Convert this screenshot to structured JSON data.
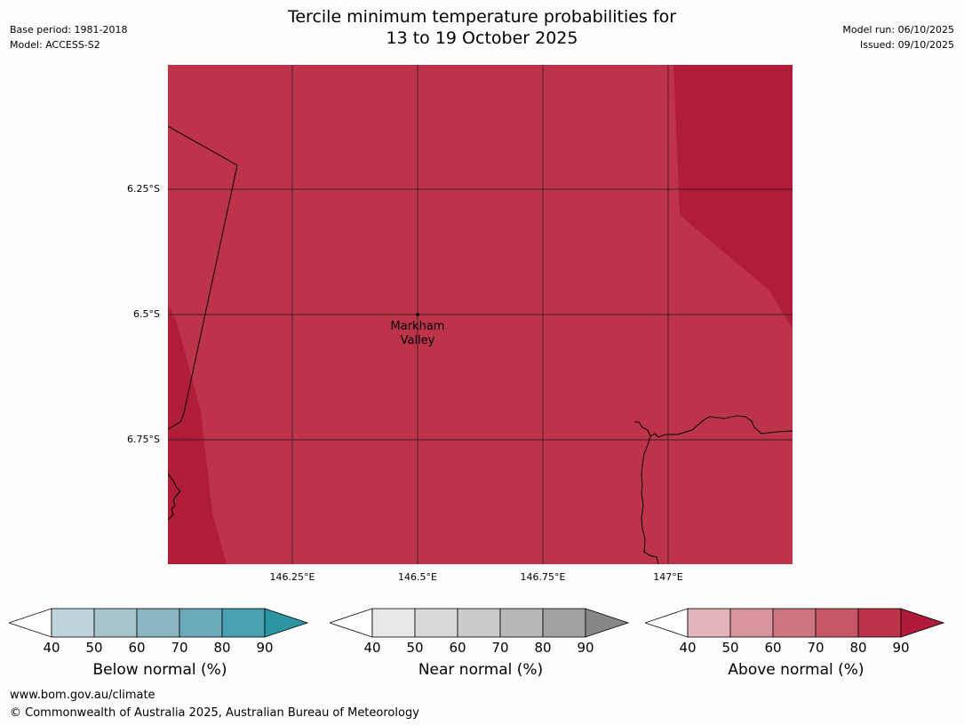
{
  "meta": {
    "base_period": "Base period: 1981-2018",
    "model": "Model: ACCESS-S2",
    "model_run": "Model run: 06/10/2025",
    "issued": "Issued: 09/10/2025"
  },
  "title": {
    "line1": "Tercile minimum temperature probabilities for",
    "line2": "13 to 19 October 2025"
  },
  "map": {
    "lat_labels": [
      "6.25°S",
      "6.5°S",
      "6.75°S"
    ],
    "lon_labels": [
      "146.25°E",
      "146.5°E",
      "146.75°E",
      "147°E"
    ],
    "place": {
      "name_line1": "Markham",
      "name_line2": "Valley"
    },
    "colors": {
      "main": "#bc334a",
      "dark": "#b01d39"
    }
  },
  "legends": [
    {
      "title": "Below normal (%)",
      "ticks": [
        "40",
        "50",
        "60",
        "70",
        "80",
        "90"
      ],
      "colors": [
        "#bed5db",
        "#a6c5cb",
        "#89b6c1",
        "#6aaab9",
        "#48a1b0"
      ],
      "extend_color": "#2b95a3"
    },
    {
      "title": "Near normal (%)",
      "ticks": [
        "40",
        "50",
        "60",
        "70",
        "80",
        "90"
      ],
      "colors": [
        "#e8e8e8",
        "#dadada",
        "#cbcbcb",
        "#b8b8b8",
        "#a1a1a1"
      ],
      "extend_color": "#878787"
    },
    {
      "title": "Above normal (%)",
      "ticks": [
        "40",
        "50",
        "60",
        "70",
        "80",
        "90"
      ],
      "colors": [
        "#e2b6bc",
        "#d8959d",
        "#cd767f",
        "#c65665",
        "#bc334a"
      ],
      "extend_color": "#af1a38"
    }
  ],
  "footer": {
    "url": "www.bom.gov.au/climate",
    "copyright": "© Commonwealth of Australia 2025, Australian Bureau of Meteorology"
  }
}
